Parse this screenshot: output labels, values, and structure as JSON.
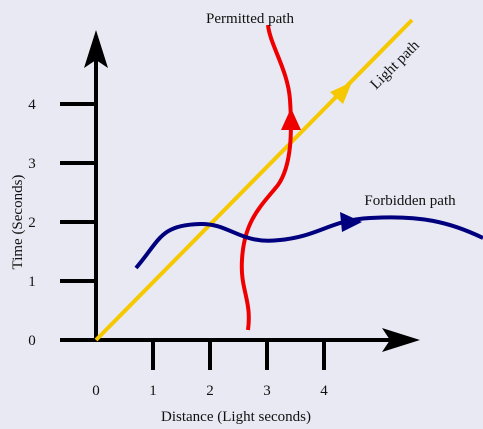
{
  "axes": {
    "x_label": "Distance (Light seconds)",
    "y_label": "Time (Seconds)",
    "x_ticks": [
      0,
      1,
      2,
      3,
      4
    ],
    "y_ticks": [
      0,
      1,
      2,
      3,
      4
    ]
  },
  "paths": {
    "permitted": "Permitted path",
    "light": "Light path",
    "forbidden": "Forbidden path"
  }
}
